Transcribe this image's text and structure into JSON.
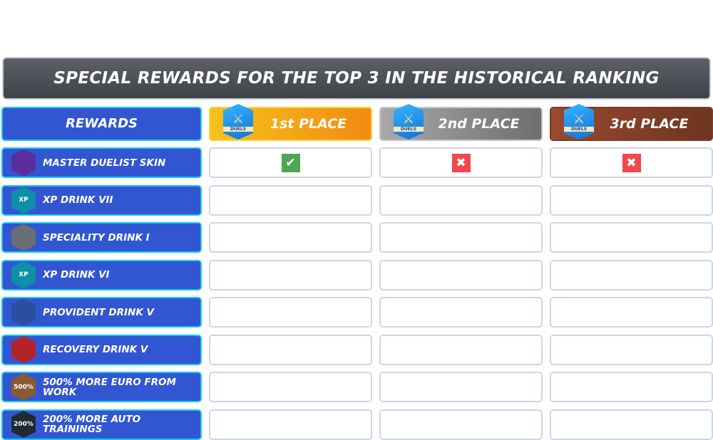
{
  "title": "SPECIAL REWARDS FOR THE TOP 3 IN THE HISTORICAL RANKING",
  "header": {
    "rewards_label": "REWARDS",
    "places": [
      {
        "label": "1st PLACE",
        "badge": "DUELS",
        "color_from": "#f5c21b",
        "color_to": "#f28a12"
      },
      {
        "label": "2nd PLACE",
        "badge": "DUELS",
        "color_from": "#a9a9a9",
        "color_to": "#6e6e6e"
      },
      {
        "label": "3rd PLACE",
        "badge": "DUELS",
        "color_from": "#9a4a2e",
        "color_to": "#6d3520"
      }
    ]
  },
  "rows": [
    {
      "label": "MASTER DUELIST SKIN",
      "icon": "duelist-skin-icon",
      "icon_color": "#5a2e9e",
      "icon_text": "",
      "marks": [
        "check",
        "cross",
        "cross"
      ]
    },
    {
      "label": "XP DRINK VII",
      "icon": "xp-drink-icon",
      "icon_color": "#0f8fa8",
      "icon_text": "XP",
      "marks": [
        "",
        "",
        ""
      ]
    },
    {
      "label": "SPECIALITY DRINK I",
      "icon": "speciality-drink-icon",
      "icon_color": "#6a6e75",
      "icon_text": "",
      "marks": [
        "",
        "",
        ""
      ]
    },
    {
      "label": "XP DRINK VI",
      "icon": "xp-drink-icon",
      "icon_color": "#0f8fa8",
      "icon_text": "XP",
      "marks": [
        "",
        "",
        ""
      ]
    },
    {
      "label": "PROVIDENT DRINK V",
      "icon": "provident-drink-icon",
      "icon_color": "#2a4f9e",
      "icon_text": "",
      "marks": [
        "",
        "",
        ""
      ]
    },
    {
      "label": "RECOVERY DRINK V",
      "icon": "recovery-drink-icon",
      "icon_color": "#b3242a",
      "icon_text": "",
      "marks": [
        "",
        "",
        ""
      ]
    },
    {
      "label": "500% MORE EURO FROM WORK",
      "icon": "briefcase-icon",
      "icon_color": "#8a5a34",
      "icon_text": "500%",
      "marks": [
        "",
        "",
        ""
      ]
    },
    {
      "label": "200% MORE AUTO TRAININGS",
      "icon": "xp-boost-icon",
      "icon_color": "#1f2a33",
      "icon_text": "200%",
      "marks": [
        "",
        "",
        ""
      ]
    }
  ],
  "colors": {
    "reward_bg": "#3256d2",
    "reward_border": "#17c8f2",
    "check": "#4fa553",
    "cross": "#f2474c"
  }
}
